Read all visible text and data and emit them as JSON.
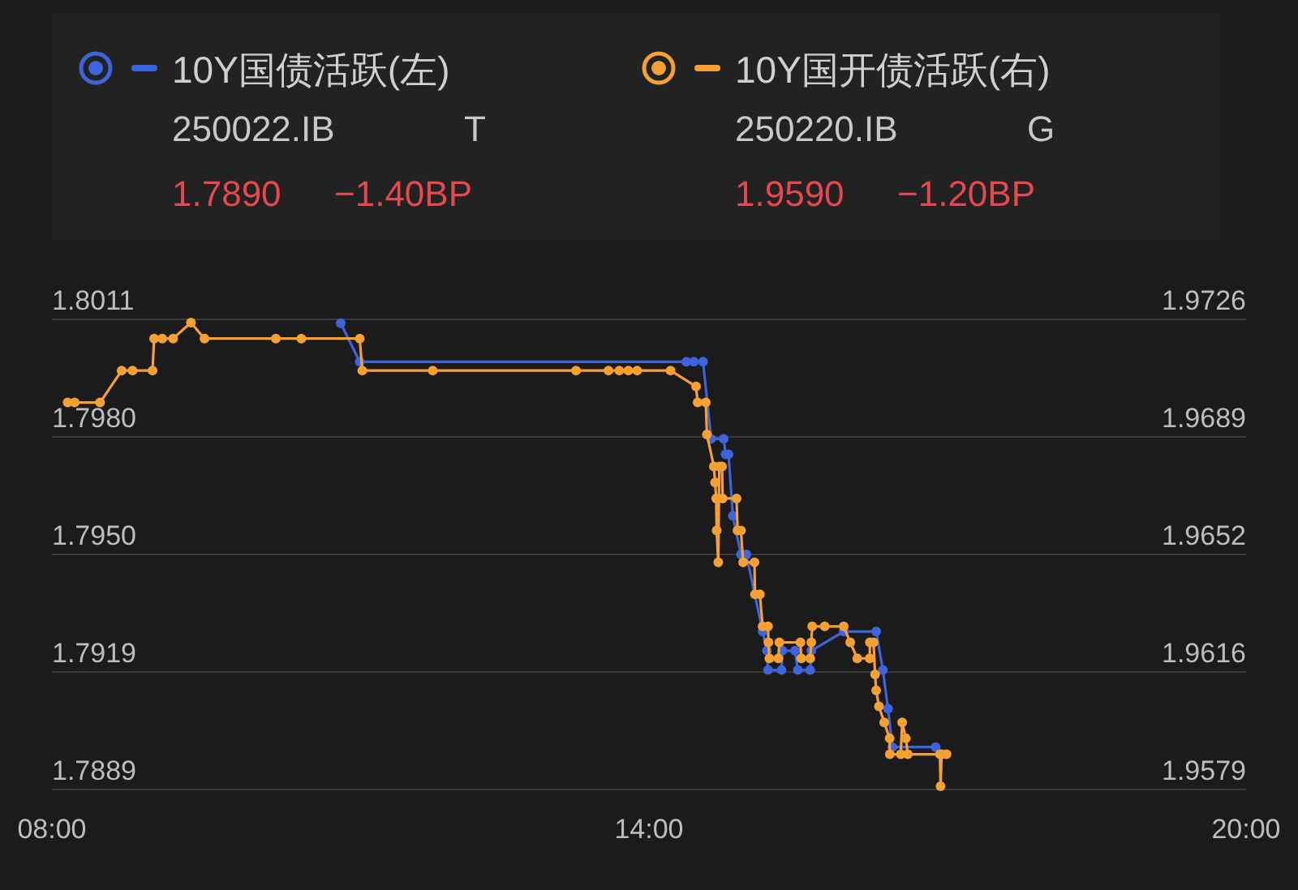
{
  "chart_data": {
    "type": "line",
    "legend": "top",
    "marker": "circle",
    "line_style": "solid",
    "grid": "y",
    "xlim": [
      8,
      20
    ],
    "xticks": [
      {
        "value": 8,
        "label": "08:00"
      },
      {
        "value": 14,
        "label": "14:00"
      },
      {
        "value": 20,
        "label": "20:00"
      }
    ],
    "ylim": [
      1.7889,
      1.8011
    ],
    "yticks": [
      1.7889,
      {
        "value": 1.79195,
        "label": "1.7919"
      },
      {
        "value": 1.795,
        "label": "1.7950"
      },
      {
        "value": 1.79805,
        "label": "1.7980"
      },
      1.8011
    ],
    "y2lim": [
      1.9579,
      1.9726
    ],
    "y2ticks": [
      1.9579,
      {
        "value": 1.96158,
        "label": "1.9616"
      },
      {
        "value": 1.96525,
        "label": "1.9652"
      },
      {
        "value": 1.96893,
        "label": "1.9689"
      },
      1.9726
    ],
    "annotations": [
      "250022.IB",
      "T",
      "1.7890",
      "−1.40BP",
      "250220.IB",
      "G",
      "1.9590",
      "−1.20BP"
    ],
    "series": [
      {
        "name": "10Y国债活跃(左)",
        "color": "#3d63dd",
        "axis": "y",
        "x": [
          10.902,
          11.093,
          14.375,
          14.45,
          14.543,
          14.625,
          14.75,
          14.77,
          14.799,
          14.843,
          14.924,
          14.978,
          15.142,
          15.186,
          15.196,
          15.332,
          15.34,
          15.468,
          15.496,
          15.62,
          15.631,
          15.957,
          16.283,
          16.35,
          16.402,
          16.445,
          16.881
        ],
        "values": [
          1.801,
          1.8,
          1.8,
          1.8,
          1.8,
          1.798,
          1.798,
          1.7976,
          1.7976,
          1.796,
          1.795,
          1.795,
          1.793,
          1.7925,
          1.792,
          1.792,
          1.7925,
          1.7925,
          1.792,
          1.792,
          1.7925,
          1.793,
          1.793,
          1.792,
          1.791,
          1.79,
          1.79
        ]
      },
      {
        "name": "10Y国开债活跃(右)",
        "color": "#f5a030",
        "axis": "y2",
        "x": [
          8.158,
          8.228,
          8.484,
          8.701,
          8.81,
          9.011,
          9.027,
          9.109,
          9.218,
          9.397,
          9.533,
          10.25,
          10.506,
          11.093,
          11.119,
          11.827,
          13.267,
          13.593,
          13.702,
          13.793,
          13.881,
          14.217,
          14.473,
          14.489,
          14.571,
          14.582,
          14.652,
          14.664,
          14.675,
          14.68,
          14.696,
          14.706,
          14.734,
          14.74,
          14.88,
          14.89,
          14.924,
          14.946,
          15.06,
          15.065,
          15.114,
          15.142,
          15.196,
          15.2,
          15.21,
          15.3,
          15.31,
          15.522,
          15.53,
          15.62,
          15.631,
          15.64,
          15.766,
          15.957,
          16.022,
          16.093,
          16.218,
          16.22,
          16.256,
          16.272,
          16.283,
          16.311,
          16.364,
          16.418,
          16.42,
          16.53,
          16.544,
          16.581,
          16.6,
          16.924,
          16.93,
          16.94,
          16.99
        ],
        "values": [
          1.97,
          1.97,
          1.97,
          1.971,
          1.971,
          1.971,
          1.972,
          1.972,
          1.972,
          1.9725,
          1.972,
          1.972,
          1.972,
          1.972,
          1.971,
          1.971,
          1.971,
          1.971,
          1.971,
          1.971,
          1.971,
          1.971,
          1.9705,
          1.97,
          1.97,
          1.969,
          1.968,
          1.9675,
          1.967,
          1.966,
          1.965,
          1.968,
          1.968,
          1.967,
          1.967,
          1.966,
          1.966,
          1.965,
          1.965,
          1.964,
          1.964,
          1.963,
          1.963,
          1.9625,
          1.962,
          1.962,
          1.9625,
          1.9625,
          1.962,
          1.962,
          1.9625,
          1.963,
          1.963,
          1.963,
          1.9625,
          1.962,
          1.962,
          1.9625,
          1.9625,
          1.9615,
          1.961,
          1.9605,
          1.96,
          1.9595,
          1.959,
          1.959,
          1.96,
          1.9595,
          1.959,
          1.959,
          1.958,
          1.959,
          1.959
        ]
      }
    ]
  }
}
